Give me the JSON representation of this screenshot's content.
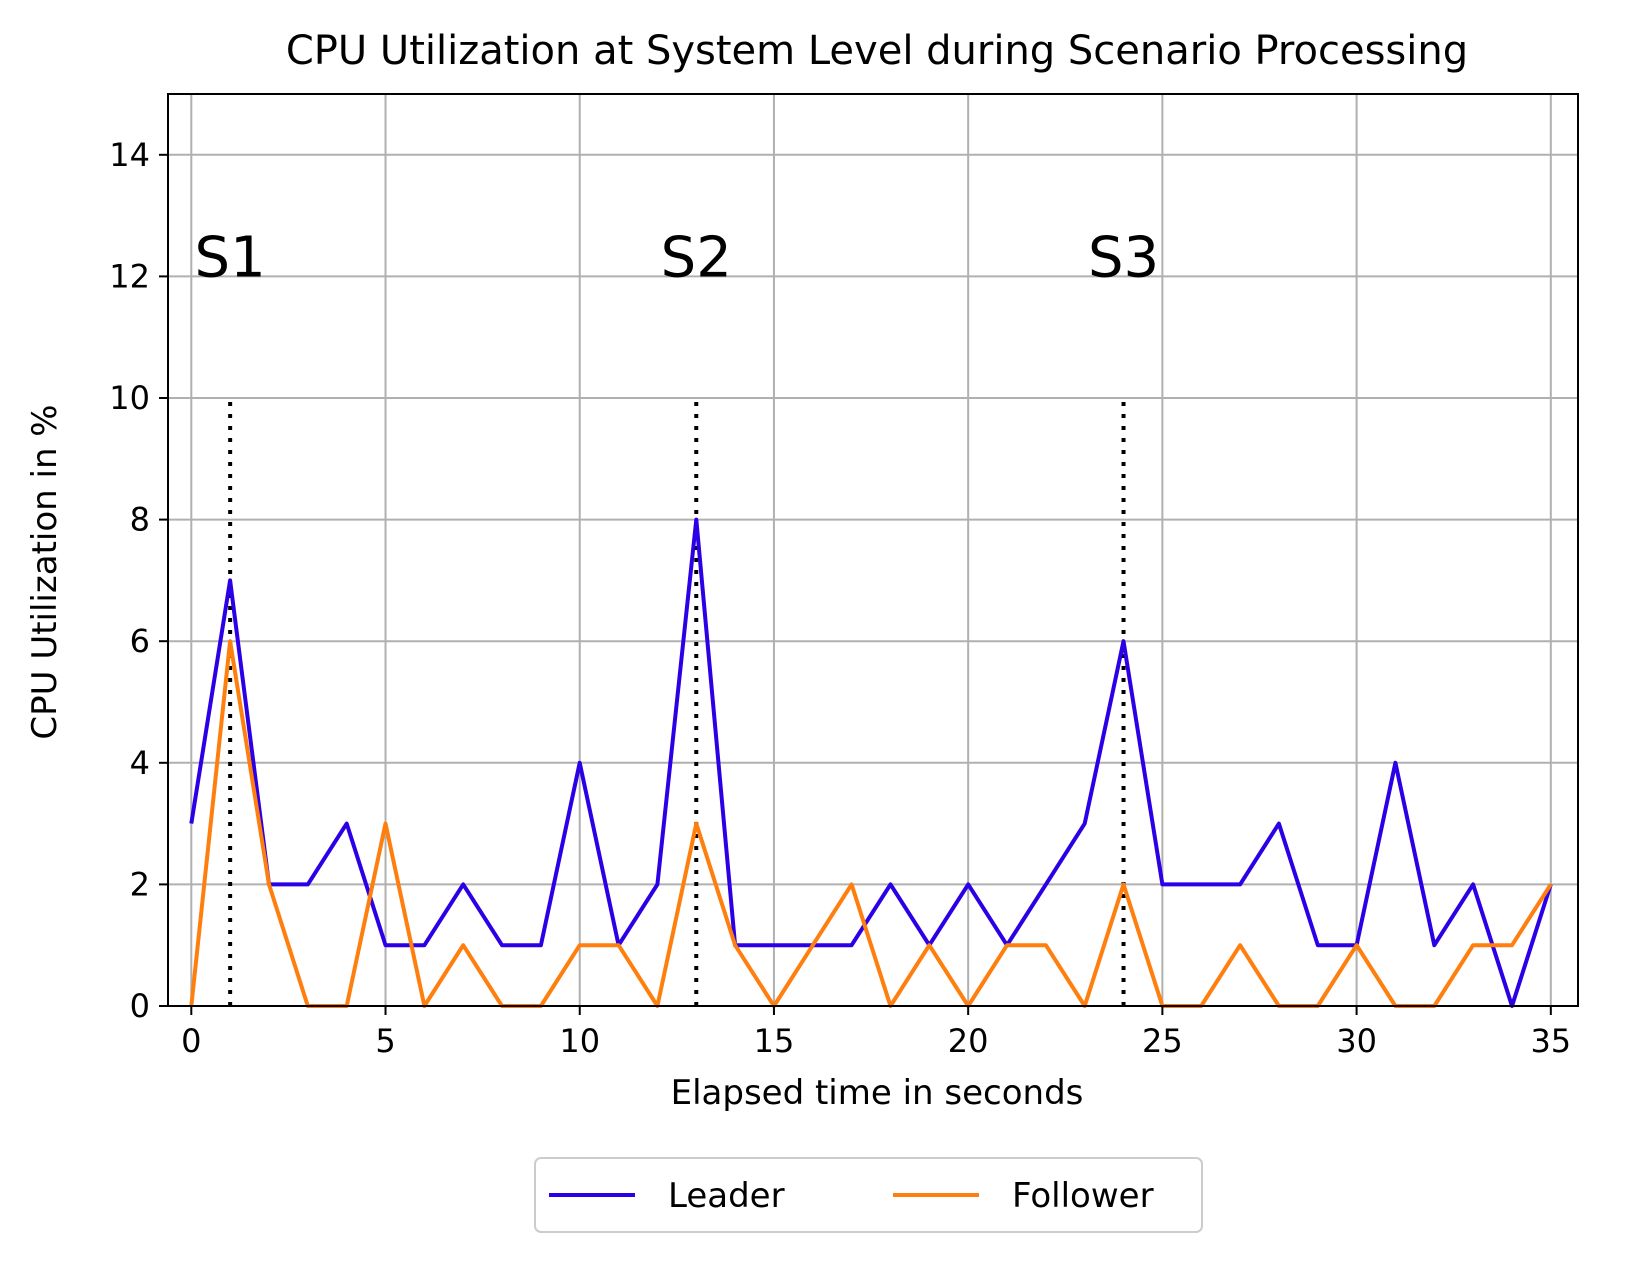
{
  "chart_data": {
    "type": "line",
    "title": "CPU Utilization at System Level during Scenario Processing",
    "xlabel": "Elapsed time in seconds",
    "ylabel": "CPU Utilization in %",
    "xlim": [
      -0.6,
      35.7
    ],
    "ylim": [
      0,
      15
    ],
    "xticks": [
      0,
      5,
      10,
      15,
      20,
      25,
      30,
      35
    ],
    "yticks": [
      0,
      2,
      4,
      6,
      8,
      10,
      12,
      14
    ],
    "grid": true,
    "legend_position": "bottom-center",
    "x": [
      0,
      1,
      2,
      3,
      4,
      5,
      6,
      7,
      8,
      9,
      10,
      11,
      12,
      13,
      14,
      15,
      16,
      17,
      18,
      19,
      20,
      21,
      22,
      23,
      24,
      25,
      26,
      27,
      28,
      29,
      30,
      31,
      32,
      33,
      34,
      35
    ],
    "series": [
      {
        "name": "Leader",
        "color": "#2c00e6",
        "values": [
          3,
          7,
          2,
          2,
          3,
          1,
          1,
          2,
          1,
          1,
          4,
          1,
          2,
          8,
          1,
          1,
          1,
          1,
          2,
          1,
          2,
          1,
          2,
          3,
          6,
          2,
          2,
          2,
          3,
          1,
          1,
          4,
          1,
          2,
          0,
          2
        ]
      },
      {
        "name": "Follower",
        "color": "#ff7f0e",
        "values": [
          0,
          6,
          2,
          0,
          0,
          3,
          0,
          1,
          0,
          0,
          1,
          1,
          0,
          3,
          1,
          0,
          1,
          2,
          0,
          1,
          0,
          1,
          1,
          0,
          2,
          0,
          0,
          1,
          0,
          0,
          1,
          0,
          0,
          1,
          1,
          2
        ]
      }
    ],
    "markers": [
      {
        "label": "S1",
        "x": 1,
        "y_from": 0,
        "y_to": 10,
        "label_y": 12
      },
      {
        "label": "S2",
        "x": 13,
        "y_from": 0,
        "y_to": 10,
        "label_y": 12
      },
      {
        "label": "S3",
        "x": 24,
        "y_from": 0,
        "y_to": 10,
        "label_y": 12
      }
    ]
  }
}
